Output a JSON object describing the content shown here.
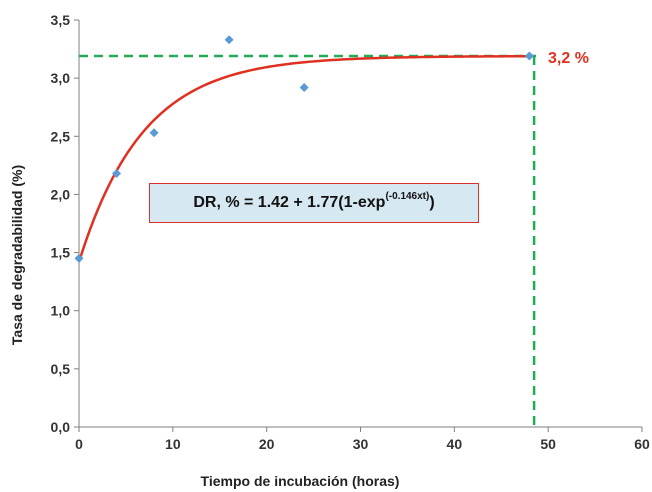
{
  "chart_data": {
    "type": "scatter",
    "title": "",
    "xlabel": "Tiempo de incubación (horas)",
    "ylabel": "Tasa de degradabilidad (%)",
    "xlim": [
      0,
      60
    ],
    "ylim": [
      0,
      3.5
    ],
    "x_ticks": [
      "0",
      "10",
      "20",
      "30",
      "40",
      "50",
      "60"
    ],
    "y_ticks": [
      "0,0",
      "0,5",
      "1,0",
      "1,5",
      "2,0",
      "2,5",
      "3,0",
      "3,5"
    ],
    "grid": false,
    "series": [
      {
        "type": "scatter",
        "color": "#5b9bd5",
        "x": [
          0,
          4,
          8,
          16,
          24,
          48
        ],
        "y": [
          1.45,
          2.18,
          2.53,
          3.33,
          2.92,
          3.19
        ]
      },
      {
        "type": "line",
        "color": "#e03020",
        "model": {
          "a": 1.42,
          "b": 1.77,
          "c": 0.146
        },
        "x_range": [
          0,
          48
        ]
      }
    ],
    "reference_lines": {
      "color": "#22aa55",
      "horizontal_y": 3.19,
      "vertical_x": 48.5
    },
    "end_label": {
      "text": "3,2 %",
      "color": "#e03020"
    },
    "equation": {
      "main": "DR, % = 1.42 + 1.77(1-exp",
      "sup": "(-0.146xt)",
      "close": ")"
    }
  }
}
